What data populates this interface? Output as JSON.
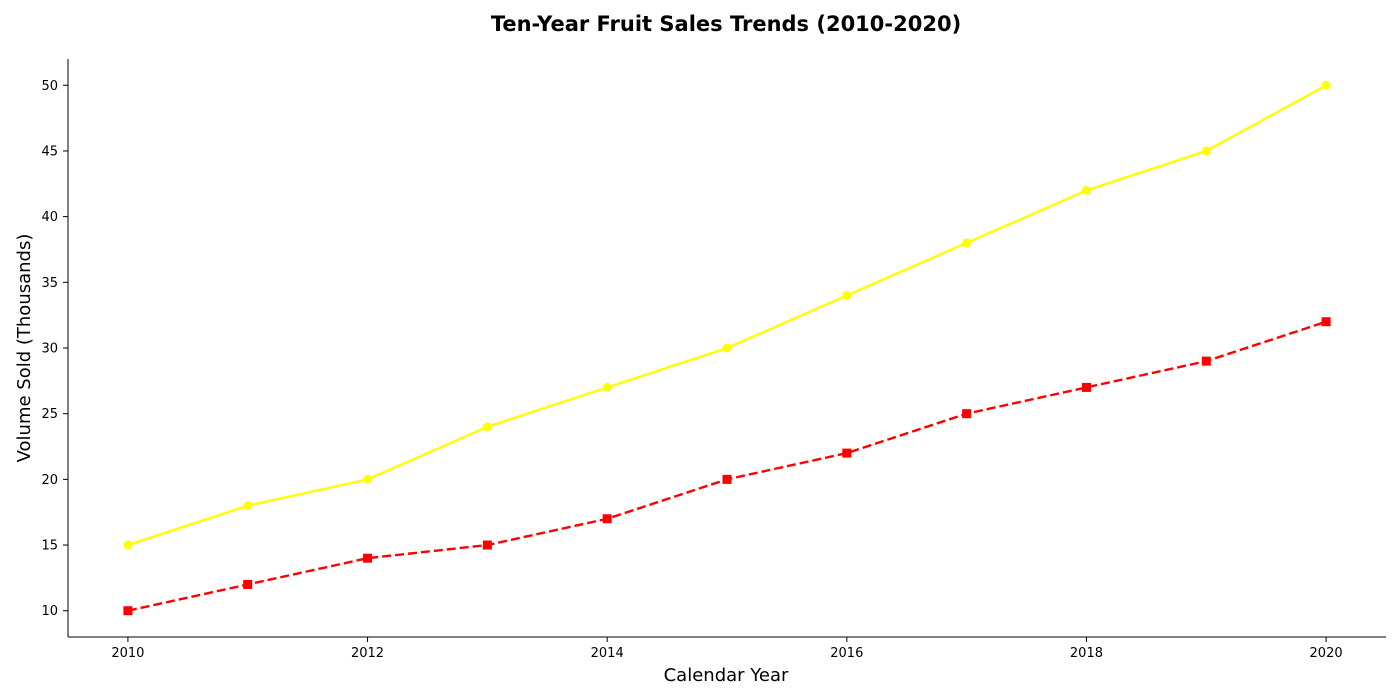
{
  "chart_data": {
    "type": "line",
    "title": "Ten-Year Fruit Sales Trends (2010-2020)",
    "xlabel": "Calendar Year",
    "ylabel": "Volume Sold (Thousands)",
    "x": [
      2010,
      2011,
      2012,
      2013,
      2014,
      2015,
      2016,
      2017,
      2018,
      2019,
      2020
    ],
    "x_ticks": [
      2010,
      2012,
      2014,
      2016,
      2018,
      2020
    ],
    "y_ticks": [
      10,
      15,
      20,
      25,
      30,
      35,
      40,
      45,
      50
    ],
    "xlim": [
      2009.5,
      2020.5
    ],
    "ylim": [
      8,
      52
    ],
    "grid": false,
    "legend": false,
    "series": [
      {
        "color": "#ffff00",
        "line_style": "solid",
        "marker": "circle",
        "values": [
          15,
          18,
          20,
          24,
          27,
          30,
          34,
          38,
          42,
          45,
          50
        ]
      },
      {
        "color": "#ff0000",
        "line_style": "dashed",
        "marker": "square",
        "values": [
          10,
          12,
          14,
          15,
          17,
          20,
          22,
          25,
          27,
          29,
          32
        ]
      }
    ]
  }
}
